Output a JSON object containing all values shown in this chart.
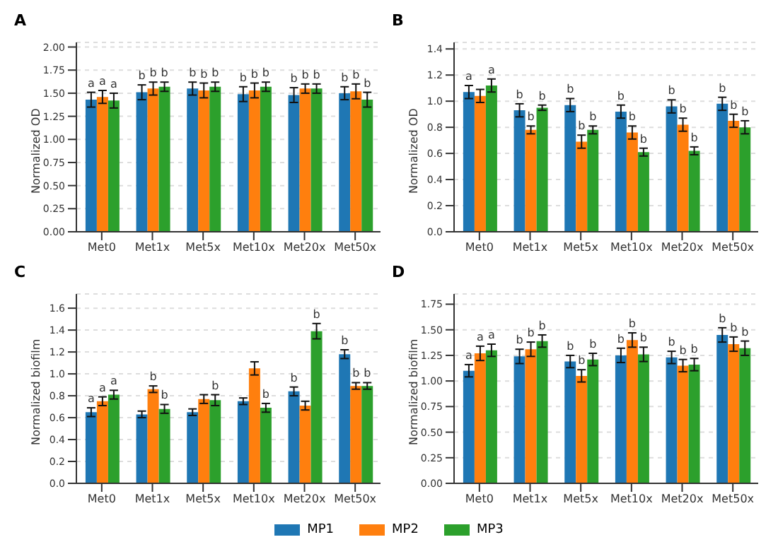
{
  "chart_data": [
    {
      "type": "bar",
      "title": "A",
      "ylabel": "Normalized OD",
      "categories": [
        "Met0",
        "Met1x",
        "Met5x",
        "Met10x",
        "Met20x",
        "Met50x"
      ],
      "ylim": [
        0,
        2.05
      ],
      "yticks": [
        {
          "value": 0,
          "label": "0.00"
        },
        0.25,
        {
          "value": 0.5,
          "label": "0.50"
        },
        0.75,
        {
          "value": 1,
          "label": "1.00"
        },
        1.25,
        {
          "value": 1.5,
          "label": "1.50"
        },
        1.75,
        {
          "value": 2,
          "label": "2.00"
        }
      ],
      "grid": "y",
      "legend": false,
      "series": [
        {
          "color": "#1f77b4",
          "values": [
            1.43,
            1.51,
            1.55,
            1.49,
            1.48,
            1.5
          ],
          "errors": [
            0.08,
            0.08,
            0.07,
            0.08,
            0.08,
            0.07
          ],
          "value_labels": [
            "a",
            "b",
            "b",
            "b",
            "b",
            "b"
          ]
        },
        {
          "color": "#ff7f0e",
          "values": [
            1.46,
            1.55,
            1.53,
            1.53,
            1.55,
            1.52
          ],
          "errors": [
            0.07,
            0.07,
            0.08,
            0.08,
            0.05,
            0.08
          ],
          "value_labels": [
            "a",
            "b",
            "b",
            "b",
            "b",
            "b"
          ]
        },
        {
          "color": "#2ca02c",
          "values": [
            1.42,
            1.57,
            1.57,
            1.57,
            1.55,
            1.43
          ],
          "errors": [
            0.08,
            0.05,
            0.05,
            0.05,
            0.05,
            0.08
          ],
          "value_labels": [
            "a",
            "b",
            "b",
            "b",
            "b",
            "b"
          ]
        }
      ]
    },
    {
      "type": "bar",
      "title": "B",
      "ylabel": "Normalized OD",
      "categories": [
        "Met0",
        "Met1x",
        "Met5x",
        "Met10x",
        "Met20x",
        "Met50x"
      ],
      "ylim": [
        0,
        1.45
      ],
      "yticks": [
        {
          "value": 0,
          "label": "0.0"
        },
        0.2,
        0.4,
        0.6,
        0.8,
        {
          "value": 1,
          "label": "1.0"
        },
        1.2,
        1.4
      ],
      "grid": "y",
      "legend": false,
      "series": [
        {
          "color": "#1f77b4",
          "values": [
            1.07,
            0.93,
            0.97,
            0.92,
            0.96,
            0.98
          ],
          "errors": [
            0.05,
            0.05,
            0.05,
            0.05,
            0.05,
            0.05
          ],
          "value_labels": [
            "a",
            "b",
            "b",
            "b",
            "b",
            "b"
          ]
        },
        {
          "color": "#ff7f0e",
          "values": [
            1.04,
            0.78,
            0.69,
            0.76,
            0.82,
            0.85
          ],
          "errors": [
            0.05,
            0.03,
            0.05,
            0.05,
            0.05,
            0.05
          ],
          "value_labels": [
            null,
            "b",
            "b",
            "b",
            "b",
            "b"
          ]
        },
        {
          "color": "#2ca02c",
          "values": [
            1.12,
            0.95,
            0.78,
            0.61,
            0.62,
            0.8
          ],
          "errors": [
            0.05,
            0.02,
            0.03,
            0.03,
            0.03,
            0.05
          ],
          "value_labels": [
            "a",
            "b",
            "b",
            "b",
            "b",
            "b"
          ]
        }
      ]
    },
    {
      "type": "bar",
      "title": "C",
      "ylabel": "Normalized biofilm",
      "categories": [
        "Met0",
        "Met1x",
        "Met5x",
        "Met10x",
        "Met20x",
        "Met50x"
      ],
      "ylim": [
        0,
        1.73
      ],
      "yticks": [
        {
          "value": 0,
          "label": "0.0"
        },
        0.2,
        0.4,
        0.6,
        0.8,
        {
          "value": 1,
          "label": "1.0"
        },
        1.2,
        1.4,
        1.6
      ],
      "grid": "y",
      "legend": false,
      "series": [
        {
          "color": "#1f77b4",
          "values": [
            0.65,
            0.63,
            0.65,
            0.75,
            0.84,
            1.18
          ],
          "errors": [
            0.04,
            0.03,
            0.03,
            0.03,
            0.04,
            0.04
          ],
          "value_labels": [
            "a",
            null,
            null,
            null,
            "b",
            "b"
          ]
        },
        {
          "color": "#ff7f0e",
          "values": [
            0.75,
            0.86,
            0.77,
            1.05,
            0.71,
            0.89
          ],
          "errors": [
            0.04,
            0.03,
            0.04,
            0.06,
            0.04,
            0.03
          ],
          "value_labels": [
            "a",
            "b",
            null,
            null,
            null,
            "b"
          ]
        },
        {
          "color": "#2ca02c",
          "values": [
            0.81,
            0.68,
            0.76,
            0.69,
            1.39,
            0.89
          ],
          "errors": [
            0.04,
            0.04,
            0.05,
            0.04,
            0.07,
            0.03
          ],
          "value_labels": [
            "a",
            "b",
            "b",
            "b",
            "b",
            "b"
          ]
        }
      ]
    },
    {
      "type": "bar",
      "title": "D",
      "ylabel": "Normalized biofilm",
      "categories": [
        "Met0",
        "Met1x",
        "Met5x",
        "Met10x",
        "Met20x",
        "Met50x"
      ],
      "ylim": [
        0,
        1.85
      ],
      "yticks": [
        {
          "value": 0,
          "label": "0.00"
        },
        0.25,
        {
          "value": 0.5,
          "label": "0.50"
        },
        0.75,
        {
          "value": 1,
          "label": "1.00"
        },
        1.25,
        {
          "value": 1.5,
          "label": "1.50"
        },
        1.75
      ],
      "grid": "y",
      "legend": "bottom",
      "series": [
        {
          "name": "MP1",
          "color": "#1f77b4",
          "values": [
            1.1,
            1.24,
            1.19,
            1.25,
            1.23,
            1.45
          ],
          "errors": [
            0.06,
            0.07,
            0.06,
            0.07,
            0.06,
            0.07
          ],
          "value_labels": [
            "a",
            "b",
            "b",
            "b",
            "b",
            "b"
          ]
        },
        {
          "name": "MP2",
          "color": "#ff7f0e",
          "values": [
            1.27,
            1.31,
            1.05,
            1.4,
            1.15,
            1.36
          ],
          "errors": [
            0.07,
            0.07,
            0.06,
            0.07,
            0.06,
            0.07
          ],
          "value_labels": [
            "a",
            "b",
            "b",
            "b",
            "b",
            "b"
          ]
        },
        {
          "name": "MP3",
          "color": "#2ca02c",
          "values": [
            1.3,
            1.39,
            1.21,
            1.26,
            1.16,
            1.32
          ],
          "errors": [
            0.06,
            0.06,
            0.06,
            0.07,
            0.06,
            0.07
          ],
          "value_labels": [
            "a",
            "b",
            "b",
            "b",
            "b",
            "b"
          ]
        }
      ]
    }
  ]
}
